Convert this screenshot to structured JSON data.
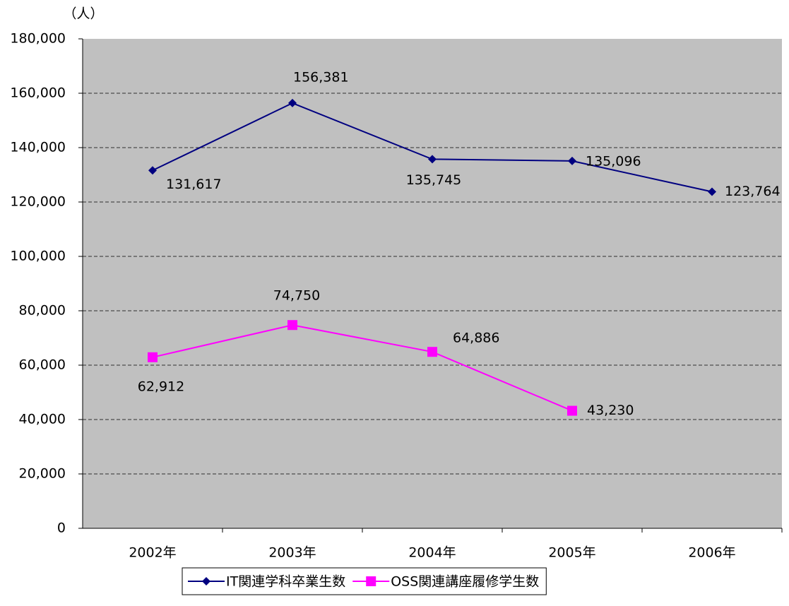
{
  "chart_data": {
    "type": "line",
    "y_unit": "（人）",
    "categories": [
      "2002年",
      "2003年",
      "2004年",
      "2005年",
      "2006年"
    ],
    "series": [
      {
        "name": "IT関連学科卒業生数",
        "color": "#000080",
        "marker": "diamond",
        "values": [
          131617,
          156381,
          135745,
          135096,
          123764
        ],
        "value_labels": [
          "131,617",
          "156,381",
          "135,745",
          "135,096",
          "123,764"
        ]
      },
      {
        "name": "OSS関連講座履修学生数",
        "color": "#ff00ff",
        "marker": "square",
        "values": [
          62912,
          74750,
          64886,
          43230,
          null
        ],
        "value_labels": [
          "62,912",
          "74,750",
          "64,886",
          "43,230",
          null
        ]
      }
    ],
    "ylim": [
      0,
      180000
    ],
    "yticks": [
      0,
      {
        "value": 20000,
        "label": "20,000"
      },
      {
        "value": 40000,
        "label": "40,000"
      },
      {
        "value": 60000,
        "label": "60,000"
      },
      {
        "value": 80000,
        "label": "80,000"
      },
      {
        "value": 100000,
        "label": "100,000"
      },
      {
        "value": 120000,
        "label": "120,000"
      },
      {
        "value": 140000,
        "label": "140,000"
      },
      {
        "value": 160000,
        "label": "160,000"
      },
      {
        "value": 180000,
        "label": "180,000"
      }
    ],
    "grid": true,
    "plot_background": "#c0c0c0",
    "legend": "bottom"
  }
}
